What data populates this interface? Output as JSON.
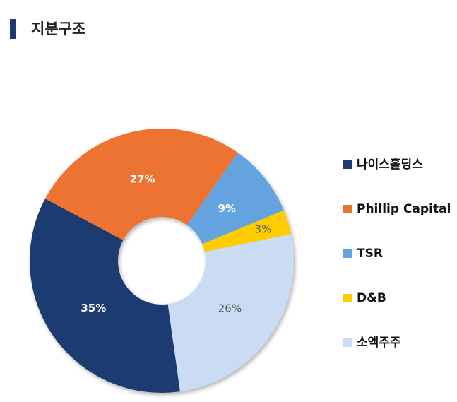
{
  "chart_data": {
    "type": "donut",
    "title": "지분구조",
    "categories": [
      "나이스홀딩스",
      "Phillip Capital",
      "TSR",
      "D&B",
      "소액주주"
    ],
    "values": [
      35,
      27,
      9,
      3,
      26
    ],
    "value_labels": [
      "35%",
      "27%",
      "9%",
      "3%",
      "26%"
    ],
    "colors": [
      "#1f3a70",
      "#ed7330",
      "#65a3e0",
      "#ffcc00",
      "#c9dcf4"
    ],
    "legend": "right"
  }
}
